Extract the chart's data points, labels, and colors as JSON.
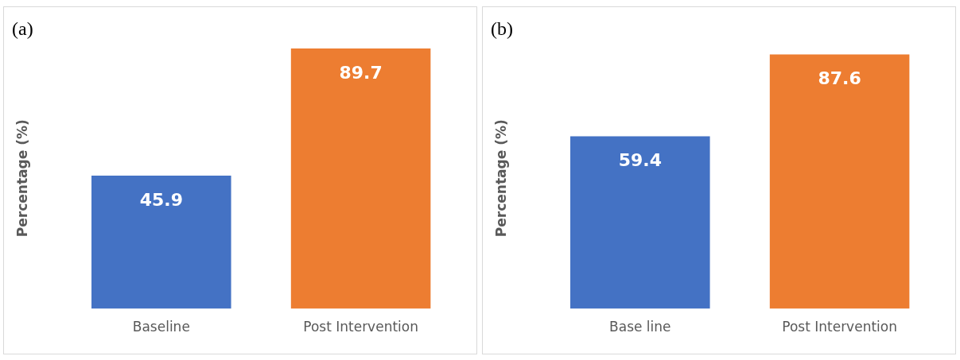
{
  "chart_data": [
    {
      "type": "bar",
      "title": "(a)",
      "ylabel": "Percentage (%)",
      "categories": [
        "Baseline",
        "Post Intervention"
      ],
      "values": [
        45.9,
        89.7
      ],
      "colors": [
        "#4472c4",
        "#ed7d31"
      ],
      "tick_labels": "x",
      "grid": false,
      "legend": false,
      "data_labels": true
    },
    {
      "type": "bar",
      "title": "(b)",
      "ylabel": "Percentage (%)",
      "categories": [
        "Base line",
        "Post Intervention"
      ],
      "values": [
        59.4,
        87.6
      ],
      "colors": [
        "#4472c4",
        "#ed7d31"
      ],
      "tick_labels": "x",
      "grid": false,
      "legend": false,
      "data_labels": true
    }
  ]
}
